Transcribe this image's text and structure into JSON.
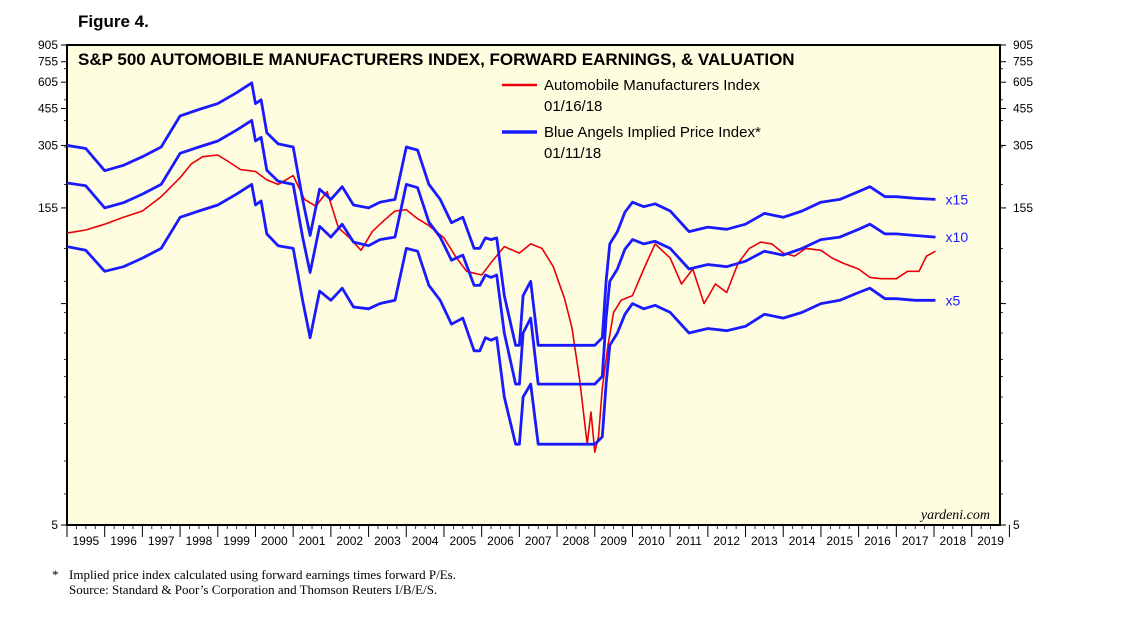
{
  "figure_label": "Figure 4.",
  "footnote": "Implied price index calculated using forward earnings times forward P/Es.",
  "footnote_marker": "*",
  "source": "Source: Standard & Poor’s Corporation and Thomson Reuters I/B/E/S.",
  "watermark": "yardeni.com",
  "chart_data": {
    "type": "line",
    "title": "S&P 500 AUTOMOBILE MANUFACTURERS INDEX, FORWARD EARNINGS, & VALUATION",
    "scale": "log",
    "ylim": [
      5,
      905
    ],
    "xlim": [
      1995,
      2019.75
    ],
    "y_ticks_labeled": [
      905,
      755,
      605,
      455,
      305,
      155,
      5
    ],
    "y_ticks_minor": [
      55
    ],
    "x_tick_labels": [
      "1995",
      "1996",
      "1997",
      "1998",
      "1999",
      "2000",
      "2001",
      "2002",
      "2003",
      "2004",
      "2005",
      "2006",
      "2007",
      "2008",
      "2009",
      "2010",
      "2011",
      "2012",
      "2013",
      "2014",
      "2015",
      "2016",
      "2017",
      "2018",
      "2019"
    ],
    "legend": [
      {
        "label": "Automobile Manufacturers Index",
        "date": "01/16/18",
        "color": "#e8000b"
      },
      {
        "label": "Blue Angels Implied Price Index*",
        "date": "01/11/18",
        "color": "#1a1aff"
      }
    ],
    "multiple_labels": [
      "x15",
      "x10",
      "x5"
    ],
    "series": [
      {
        "name": "Automobile Manufacturers Index",
        "color": "#e8000b",
        "x": [
          1995.0,
          1995.5,
          1996.0,
          1996.5,
          1997.0,
          1997.5,
          1998.0,
          1998.3,
          1998.6,
          1999.0,
          1999.3,
          1999.6,
          2000.0,
          2000.3,
          2000.6,
          2001.0,
          2001.3,
          2001.6,
          2001.9,
          2002.2,
          2002.5,
          2002.8,
          2003.1,
          2003.4,
          2003.7,
          2004.0,
          2004.3,
          2004.6,
          2005.0,
          2005.3,
          2005.6,
          2006.0,
          2006.3,
          2006.6,
          2007.0,
          2007.3,
          2007.6,
          2007.9,
          2008.2,
          2008.4,
          2008.6,
          2008.8,
          2008.9,
          2009.0,
          2009.1,
          2009.2,
          2009.35,
          2009.5,
          2009.7,
          2010.0,
          2010.3,
          2010.6,
          2011.0,
          2011.3,
          2011.6,
          2011.9,
          2012.2,
          2012.5,
          2012.8,
          2013.1,
          2013.4,
          2013.7,
          2014.0,
          2014.3,
          2014.6,
          2015.0,
          2015.3,
          2015.6,
          2016.0,
          2016.3,
          2016.6,
          2017.0,
          2017.3,
          2017.6,
          2017.8,
          2018.04
        ],
        "values": [
          118,
          122,
          130,
          140,
          150,
          175,
          215,
          250,
          270,
          275,
          255,
          235,
          230,
          210,
          200,
          220,
          170,
          158,
          185,
          125,
          112,
          98,
          120,
          135,
          150,
          152,
          138,
          128,
          112,
          92,
          78,
          75,
          88,
          102,
          95,
          105,
          100,
          82,
          58,
          42,
          24,
          12,
          17,
          11,
          13,
          22,
          35,
          50,
          57,
          60,
          80,
          105,
          90,
          68,
          80,
          55,
          68,
          62,
          85,
          100,
          107,
          105,
          95,
          92,
          100,
          98,
          90,
          85,
          80,
          73,
          72,
          72,
          78,
          78,
          92,
          97
        ]
      },
      {
        "name": "Blue Angels Implied Price Index x15",
        "color": "#1a1aff",
        "end_label": "x15",
        "x": [
          1995.0,
          1995.5,
          1996.0,
          1996.5,
          1997.0,
          1997.5,
          1998.0,
          1998.5,
          1999.0,
          1999.5,
          1999.9,
          2000.0,
          2000.15,
          2000.3,
          2000.6,
          2001.0,
          2001.25,
          2001.45,
          2001.7,
          2002.0,
          2002.3,
          2002.6,
          2003.0,
          2003.3,
          2003.7,
          2004.0,
          2004.3,
          2004.6,
          2004.9,
          2005.2,
          2005.5,
          2005.8,
          2005.95,
          2006.1,
          2006.25,
          2006.4,
          2006.6,
          2006.9,
          2007.0,
          2007.1,
          2007.3,
          2007.5,
          2007.8,
          2008.0,
          2008.5,
          2009.0,
          2009.2,
          2009.3,
          2009.4,
          2009.6,
          2009.8,
          2010.0,
          2010.3,
          2010.6,
          2011.0,
          2011.5,
          2012.0,
          2012.5,
          2013.0,
          2013.5,
          2014.0,
          2014.5,
          2015.0,
          2015.5,
          2016.0,
          2016.3,
          2016.7,
          2017.0,
          2017.5,
          2018.04
        ],
        "values": [
          305,
          295,
          232,
          246,
          270,
          300,
          420,
          450,
          480,
          540,
          600,
          480,
          500,
          350,
          310,
          300,
          170,
          115,
          190,
          170,
          195,
          160,
          155,
          165,
          170,
          300,
          290,
          200,
          170,
          132,
          140,
          100,
          100,
          112,
          110,
          112,
          60,
          35,
          35,
          60,
          70,
          35,
          35,
          35,
          35,
          35,
          38,
          70,
          105,
          120,
          148,
          165,
          157,
          162,
          150,
          120,
          126,
          123,
          130,
          146,
          140,
          150,
          165,
          170,
          185,
          195,
          175,
          175,
          172,
          170
        ]
      },
      {
        "name": "Blue Angels Implied Price Index x10",
        "color": "#1a1aff",
        "end_label": "x10",
        "x": [
          1995.0,
          1995.5,
          1996.0,
          1996.5,
          1997.0,
          1997.5,
          1998.0,
          1998.5,
          1999.0,
          1999.5,
          1999.9,
          2000.0,
          2000.15,
          2000.3,
          2000.6,
          2001.0,
          2001.25,
          2001.45,
          2001.7,
          2002.0,
          2002.3,
          2002.6,
          2003.0,
          2003.3,
          2003.7,
          2004.0,
          2004.3,
          2004.6,
          2004.9,
          2005.2,
          2005.5,
          2005.8,
          2005.95,
          2006.1,
          2006.25,
          2006.4,
          2006.6,
          2006.9,
          2007.0,
          2007.1,
          2007.3,
          2007.5,
          2007.8,
          2008.0,
          2008.5,
          2009.0,
          2009.2,
          2009.3,
          2009.4,
          2009.6,
          2009.8,
          2010.0,
          2010.3,
          2010.6,
          2011.0,
          2011.5,
          2012.0,
          2012.5,
          2013.0,
          2013.5,
          2014.0,
          2014.5,
          2015.0,
          2015.5,
          2016.0,
          2016.3,
          2016.7,
          2017.0,
          2017.5,
          2018.04
        ],
        "values": [
          203,
          197,
          155,
          164,
          180,
          200,
          280,
          300,
          320,
          360,
          400,
          320,
          333,
          233,
          207,
          200,
          113,
          77,
          127,
          113,
          130,
          107,
          103,
          110,
          113,
          200,
          193,
          133,
          113,
          88,
          93,
          67,
          67,
          75,
          73,
          75,
          40,
          23,
          23,
          40,
          47,
          23,
          23,
          23,
          23,
          23,
          25,
          47,
          70,
          80,
          99,
          110,
          105,
          108,
          100,
          80,
          84,
          82,
          87,
          97,
          93,
          100,
          110,
          113,
          123,
          130,
          117,
          117,
          115,
          113
        ]
      },
      {
        "name": "Blue Angels Implied Price Index x5",
        "color": "#1a1aff",
        "end_label": "x5",
        "x": [
          1995.0,
          1995.5,
          1996.0,
          1996.5,
          1997.0,
          1997.5,
          1998.0,
          1998.5,
          1999.0,
          1999.5,
          1999.9,
          2000.0,
          2000.15,
          2000.3,
          2000.6,
          2001.0,
          2001.25,
          2001.45,
          2001.7,
          2002.0,
          2002.3,
          2002.6,
          2003.0,
          2003.3,
          2003.7,
          2004.0,
          2004.3,
          2004.6,
          2004.9,
          2005.2,
          2005.5,
          2005.8,
          2005.95,
          2006.1,
          2006.25,
          2006.4,
          2006.6,
          2006.9,
          2007.0,
          2007.1,
          2007.3,
          2007.5,
          2007.8,
          2008.0,
          2008.5,
          2009.0,
          2009.2,
          2009.3,
          2009.4,
          2009.6,
          2009.8,
          2010.0,
          2010.3,
          2010.6,
          2011.0,
          2011.5,
          2012.0,
          2012.5,
          2013.0,
          2013.5,
          2014.0,
          2014.5,
          2015.0,
          2015.5,
          2016.0,
          2016.3,
          2016.7,
          2017.0,
          2017.5,
          2018.04
        ],
        "values": [
          102,
          98,
          78,
          82,
          90,
          100,
          140,
          150,
          160,
          180,
          200,
          160,
          167,
          117,
          103,
          100,
          57,
          38,
          63,
          57,
          65,
          53,
          52,
          55,
          57,
          100,
          97,
          67,
          57,
          44,
          47,
          33,
          33,
          38,
          37,
          38,
          20,
          12,
          12,
          20,
          23,
          12,
          12,
          12,
          12,
          12,
          13,
          23,
          35,
          40,
          49,
          55,
          52,
          54,
          50,
          40,
          42,
          41,
          43,
          49,
          47,
          50,
          55,
          57,
          62,
          65,
          58,
          58,
          57,
          57
        ]
      }
    ]
  }
}
